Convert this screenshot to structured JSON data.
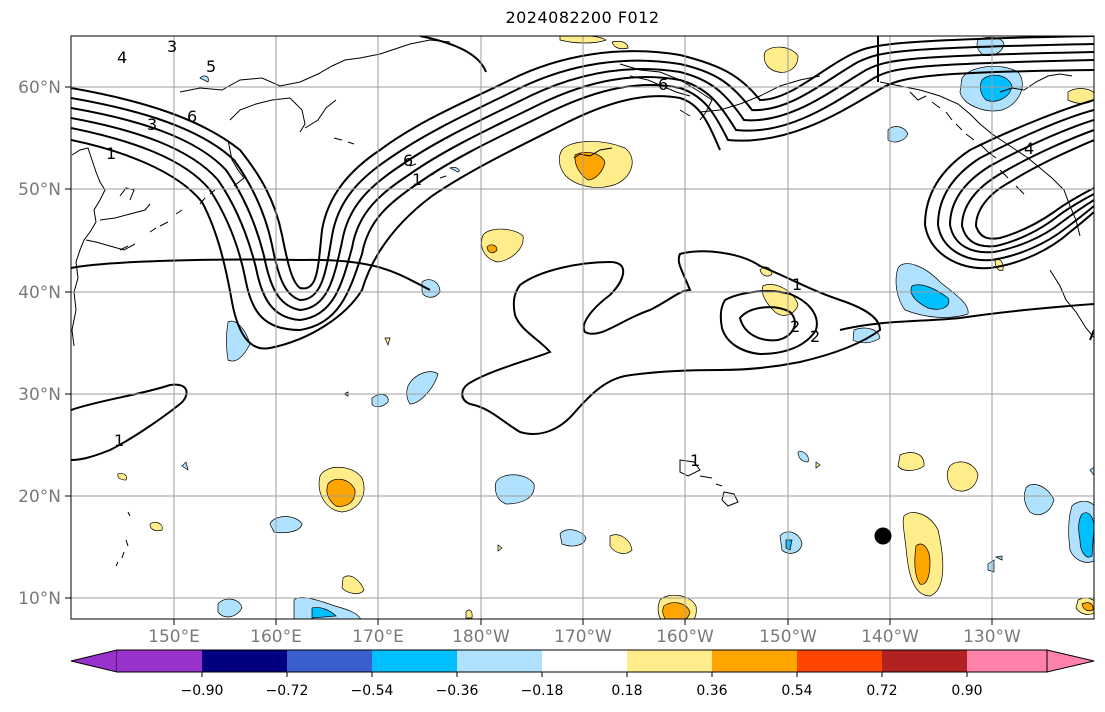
{
  "title": "2024082200 F012",
  "map": {
    "lat_labels": [
      "60°N",
      "50°N",
      "40°N",
      "30°N",
      "20°N",
      "10°N"
    ],
    "lon_labels": [
      "150°E",
      "160°E",
      "170°E",
      "180°W",
      "170°W",
      "160°W",
      "150°W",
      "140°W",
      "130°W"
    ],
    "contour_labels": [
      "3",
      "4",
      "5",
      "3",
      "6",
      "1",
      "6",
      "1",
      "1",
      "2",
      "1",
      "1",
      "2",
      "4",
      "6"
    ],
    "marker": {
      "type": "filled-circle",
      "color": "#000000"
    }
  },
  "colorbar": {
    "tick_labels": [
      "−0.90",
      "−0.72",
      "−0.54",
      "−0.36",
      "−0.18",
      "0.18",
      "0.36",
      "0.54",
      "0.72",
      "0.90"
    ],
    "colors": [
      "#9932cc",
      "#000080",
      "#3a5fcd",
      "#00bfff",
      "#b0e2ff",
      "#ffffff",
      "#ffec8b",
      "#ffa500",
      "#ff4500",
      "#b22222",
      "#ff82ab"
    ]
  }
}
